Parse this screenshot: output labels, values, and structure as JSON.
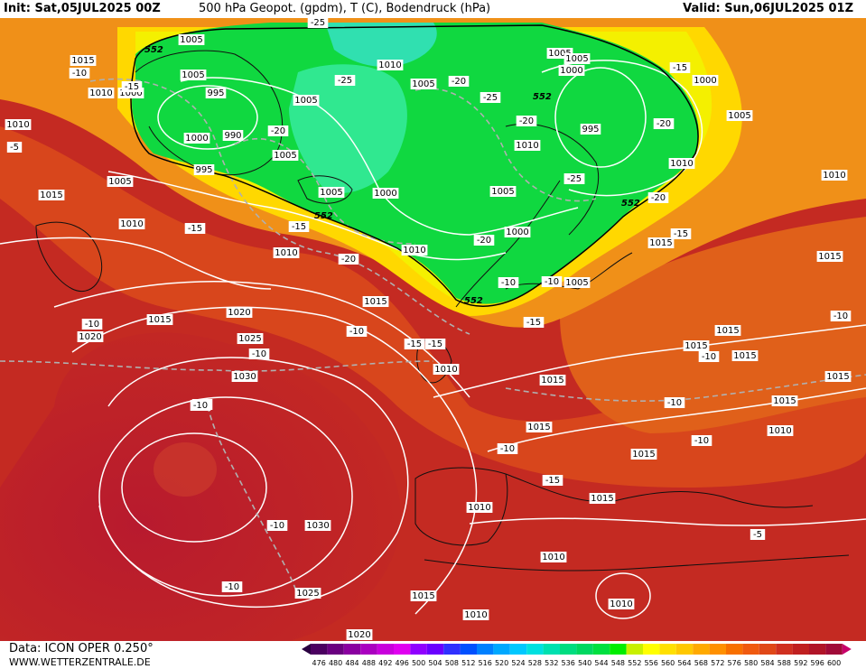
{
  "header": {
    "init": "Init: Sat,05JUL2025 00Z",
    "title": "500 hPa Geopot. (gpdm), T (C), Bodendruck (hPa)",
    "valid": "Valid: Sun,06JUL2025 01Z"
  },
  "footer": {
    "source": "Data: ICON OPER 0.250°",
    "website": "WWW.WETTERZENTRALE.DE"
  },
  "legend": {
    "values": [
      "476",
      "480",
      "484",
      "488",
      "492",
      "496",
      "500",
      "504",
      "508",
      "512",
      "516",
      "520",
      "524",
      "528",
      "532",
      "536",
      "540",
      "544",
      "548",
      "552",
      "556",
      "560",
      "564",
      "568",
      "572",
      "576",
      "580",
      "584",
      "588",
      "592",
      "596",
      "600"
    ],
    "colors": [
      "#4b0060",
      "#6a0080",
      "#8a00a0",
      "#aa00c0",
      "#c800dc",
      "#e000f0",
      "#9000ff",
      "#6a00ff",
      "#3030ff",
      "#0050ff",
      "#0080ff",
      "#00a8ff",
      "#00c8ff",
      "#00e0e0",
      "#00e0b0",
      "#00dd80",
      "#00d860",
      "#00e040",
      "#00ee00",
      "#c8f000",
      "#ffff00",
      "#ffe000",
      "#ffc800",
      "#ffaa00",
      "#ff9000",
      "#f87000",
      "#f05a10",
      "#e04818",
      "#d03020",
      "#c02020",
      "#b01428",
      "#a00a38"
    ]
  },
  "map": {
    "colors": {
      "bg_far": "#c22a22",
      "bg_mid": "#d84a1c",
      "high_core": "#b01830",
      "high_center": "#cc3030",
      "trough_green": "#10d840",
      "trough_light": "#30e890",
      "trough_cyan": "#30e0b0",
      "yellow": "#f8f000",
      "orange": "#f8a000"
    },
    "geopot_labels": [
      "552",
      "552",
      "552",
      "552",
      "552"
    ],
    "pressure_labels": [
      "1005",
      "1015",
      "1010",
      "1010",
      "1005",
      "1000",
      "995",
      "990",
      "1000",
      "1005",
      "995",
      "1005",
      "1015",
      "1010",
      "1010",
      "1015",
      "1020",
      "1025",
      "1030",
      "1020",
      "1030",
      "1025",
      "1020",
      "1005",
      "1000",
      "1010",
      "1010",
      "1005",
      "1000",
      "1005",
      "1010",
      "1005",
      "1015",
      "1000",
      "1005",
      "995",
      "1005",
      "1010",
      "1000",
      "1015",
      "1015",
      "1015",
      "1015",
      "1015",
      "1015",
      "1015",
      "1015",
      "1010",
      "1015",
      "1015",
      "1010",
      "1010",
      "1015",
      "1010",
      "1010",
      "1015",
      "1010",
      "1010",
      "1005",
      "1005"
    ],
    "temp_labels": [
      "-15",
      "-10",
      "-5",
      "-15",
      "-15",
      "-20",
      "-15",
      "-10",
      "-10",
      "-10",
      "-20",
      "-10",
      "-15",
      "-25",
      "-20",
      "-25",
      "-20",
      "-25",
      "-20",
      "-15",
      "-20",
      "-10",
      "-15",
      "-15",
      "-10",
      "-15",
      "-10",
      "-10",
      "-10",
      "-10",
      "-10",
      "-10",
      "-5",
      "-20",
      "-25",
      "-25",
      "-10",
      "-10"
    ]
  }
}
